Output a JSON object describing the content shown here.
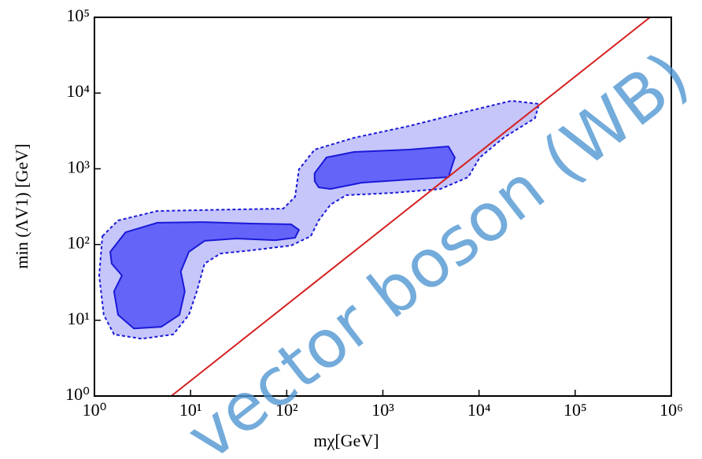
{
  "chart_data": {
    "type": "contour",
    "xlabel": "mχ[GeV]",
    "ylabel": "min (ΛV1) [GeV]",
    "watermark": "vector boson (WB)",
    "xscale": "log",
    "yscale": "log",
    "xlim": [
      1,
      1000000
    ],
    "ylim": [
      1,
      100000
    ],
    "xticks": [
      {
        "value": 1,
        "label": "10⁰"
      },
      {
        "value": 10,
        "label": "10¹"
      },
      {
        "value": 100,
        "label": "10²"
      },
      {
        "value": 1000,
        "label": "10³"
      },
      {
        "value": 10000,
        "label": "10⁴"
      },
      {
        "value": 100000,
        "label": "10⁵"
      },
      {
        "value": 1000000,
        "label": "10⁶"
      }
    ],
    "yticks": [
      {
        "value": 1,
        "label": "10⁰"
      },
      {
        "value": 10,
        "label": "10¹"
      },
      {
        "value": 100,
        "label": "10²"
      },
      {
        "value": 1000,
        "label": "10³"
      },
      {
        "value": 10000,
        "label": "10⁴"
      },
      {
        "value": 100000,
        "label": "10⁵"
      }
    ],
    "regions": [
      {
        "color": "#c6c6fb",
        "stroke": "#1a1ad8",
        "dashed": true,
        "x": [
          1.21,
          1.76,
          4.5,
          29.7,
          92,
          122,
          134,
          195,
          501,
          1877,
          8470,
          21700,
          42100,
          38300,
          18000,
          10200,
          7710,
          3990,
          1288,
          416,
          285,
          215,
          178,
          111,
          43.3,
          20.4,
          14,
          11.6,
          9.6,
          6.6,
          3.1,
          1.6,
          1.25,
          1.12
        ],
        "y": [
          129,
          208,
          277,
          291,
          298,
          427,
          986,
          1795,
          2570,
          3680,
          5930,
          7910,
          7190,
          4670,
          2570,
          1412,
          776,
          542,
          481,
          448,
          336,
          208,
          129,
          97,
          84,
          76,
          56,
          24,
          11.8,
          6.5,
          5.7,
          6.5,
          11.8,
          39
        ]
      },
      {
        "color": "#6464f8",
        "stroke": "#1a1ad8",
        "dashed": false,
        "x": [
          1.46,
          2.1,
          4.5,
          14,
          43,
          111,
          134,
          122,
          76,
          30,
          14,
          9.6,
          7.9,
          8.7,
          7.65,
          4.96,
          2.57,
          1.76,
          1.6,
          1.93,
          1.51
        ],
        "y": [
          80,
          145,
          194,
          198,
          189,
          185,
          156,
          123,
          114,
          120,
          112,
          80,
          44,
          24,
          11.8,
          8.2,
          7.8,
          11.8,
          24,
          39,
          56
        ]
      },
      {
        "color": "#6464f8",
        "stroke": "#1a1ad8",
        "dashed": false,
        "x": [
          195,
          259,
          501,
          1877,
          4810,
          5600,
          4810,
          1877,
          606,
          285,
          215,
          195
        ],
        "y": [
          875,
          1412,
          1668,
          1795,
          1974,
          1412,
          776,
          722,
          656,
          542,
          568,
          689
        ]
      }
    ],
    "line": {
      "color": "#d42020",
      "x": [
        6.3,
        600000
      ],
      "y": [
        1,
        100000
      ]
    }
  }
}
